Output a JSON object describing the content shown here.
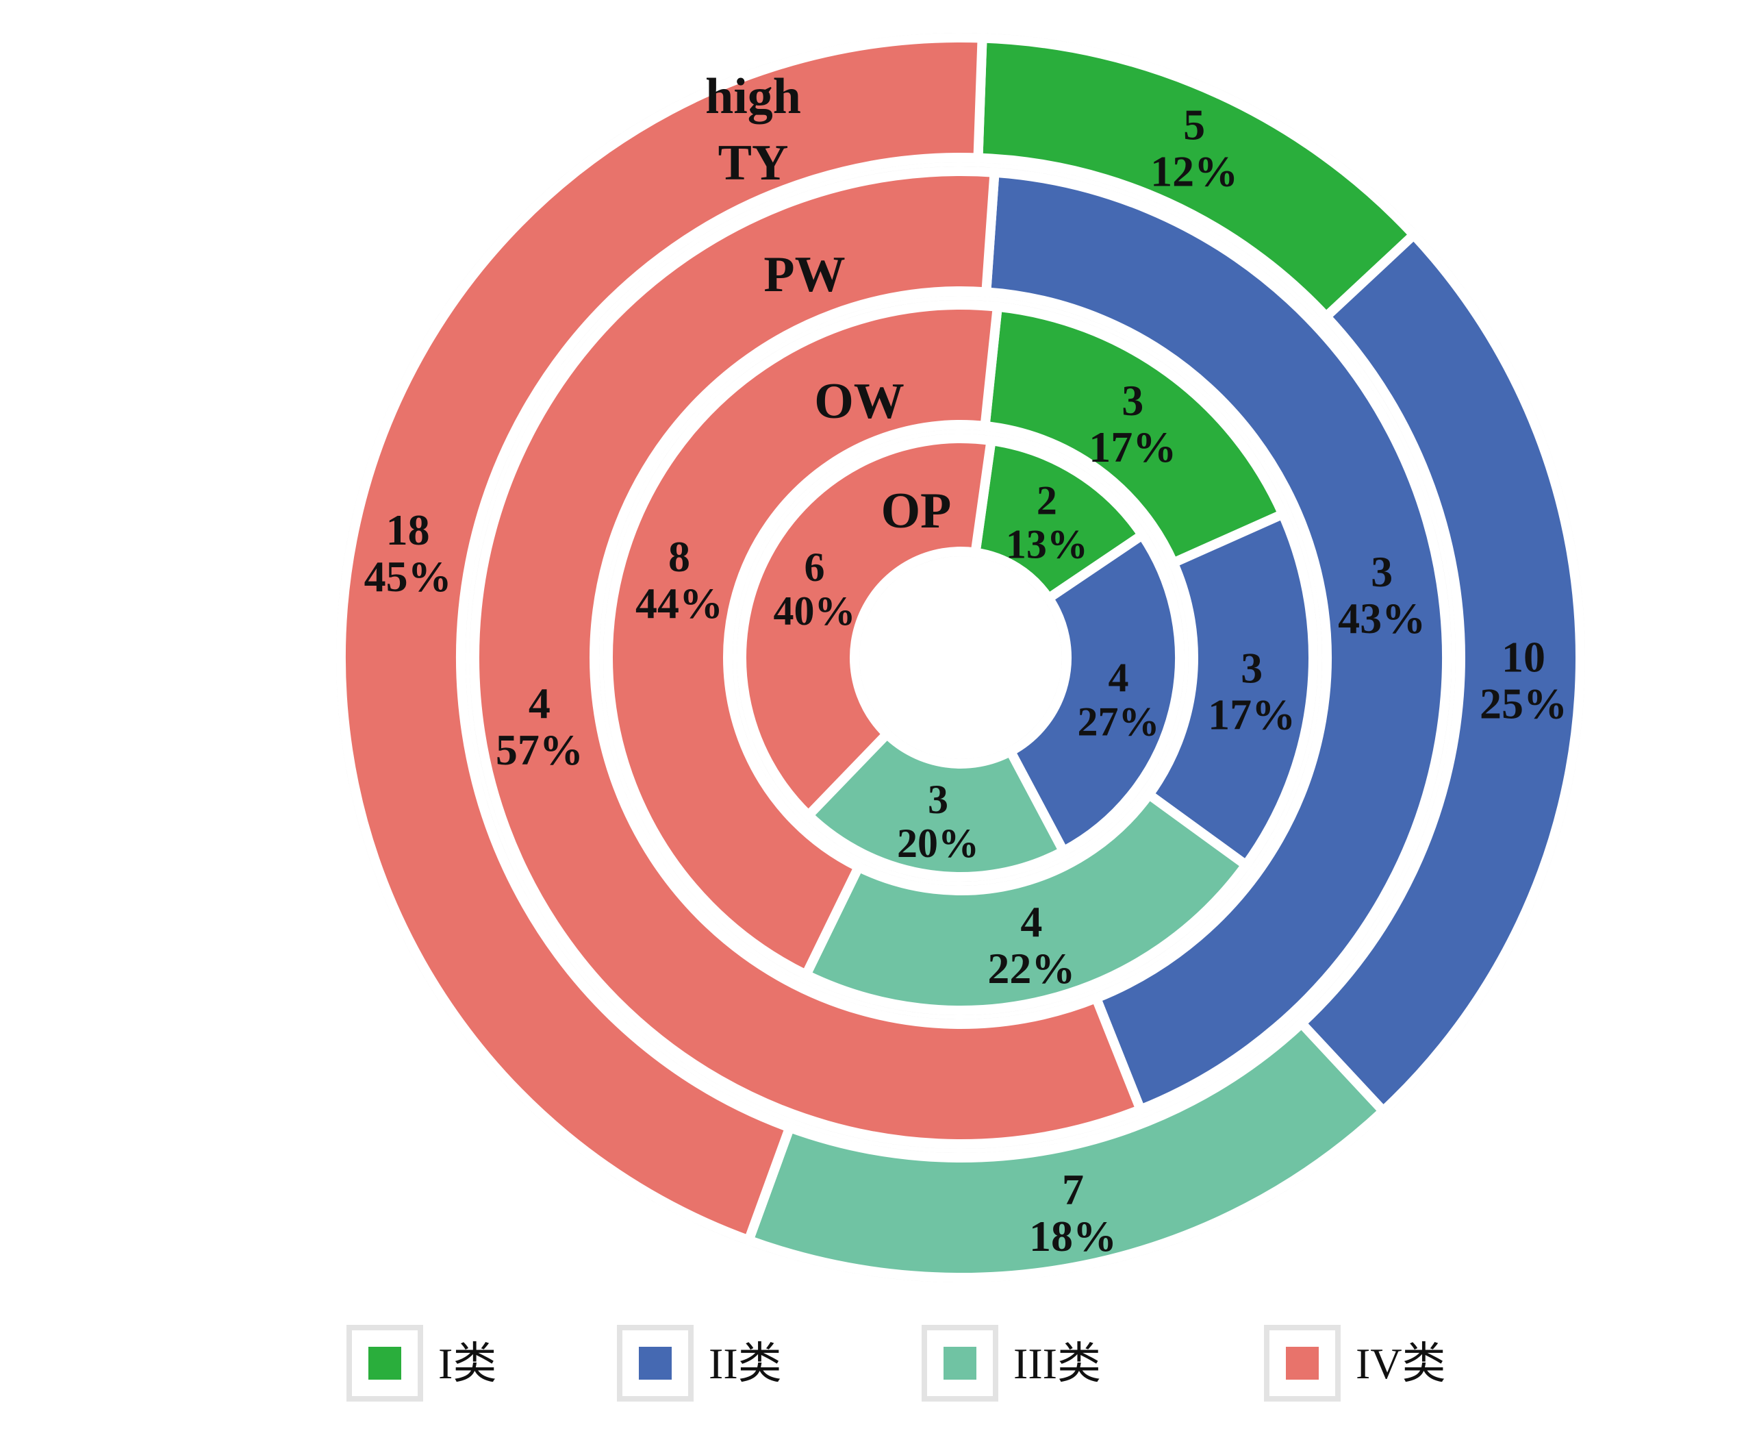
{
  "chart_data": {
    "type": "pie",
    "subtype": "multi-ring donut",
    "legend_position": "bottom",
    "categories": [
      "I类",
      "II类",
      "III类",
      "IV类"
    ],
    "colors": {
      "I类": "#2aae3c",
      "II类": "#4569b2",
      "III类": "#70c3a3",
      "IV类": "#e8736b"
    },
    "rings": [
      {
        "name": "OP",
        "slices": [
          {
            "category": "I类",
            "value": 2,
            "percent": "13%"
          },
          {
            "category": "II类",
            "value": 4,
            "percent": "27%"
          },
          {
            "category": "III类",
            "value": 3,
            "percent": "20%"
          },
          {
            "category": "IV类",
            "value": 6,
            "percent": "40%"
          }
        ]
      },
      {
        "name": "OW",
        "slices": [
          {
            "category": "I类",
            "value": 3,
            "percent": "17%"
          },
          {
            "category": "II类",
            "value": 3,
            "percent": "17%"
          },
          {
            "category": "III类",
            "value": 4,
            "percent": "22%"
          },
          {
            "category": "IV类",
            "value": 8,
            "percent": "44%"
          }
        ]
      },
      {
        "name": "PW",
        "slices": [
          {
            "category": "II类",
            "value": 3,
            "percent": "43%"
          },
          {
            "category": "IV类",
            "value": 4,
            "percent": "57%"
          }
        ]
      },
      {
        "name": "high TY",
        "slices": [
          {
            "category": "I类",
            "value": 5,
            "percent": "12%"
          },
          {
            "category": "II类",
            "value": 10,
            "percent": "25%"
          },
          {
            "category": "III类",
            "value": 7,
            "percent": "18%"
          },
          {
            "category": "IV类",
            "value": 18,
            "percent": "45%"
          }
        ]
      }
    ]
  }
}
